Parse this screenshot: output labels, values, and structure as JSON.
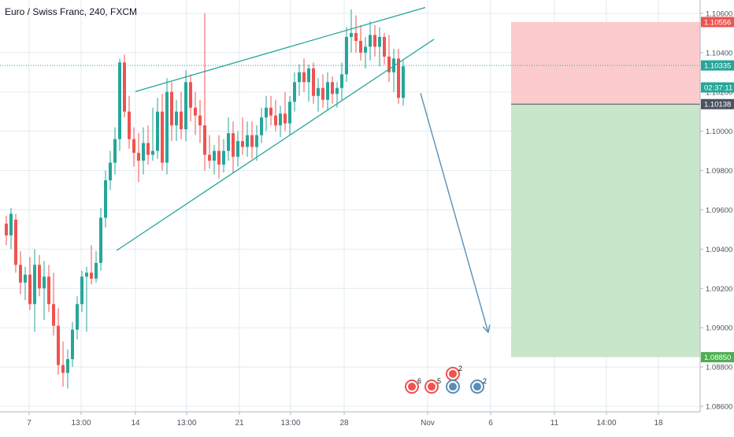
{
  "header": {
    "title": "Euro / Swiss Franc, 240, FXCM"
  },
  "colors": {
    "up": "#26a69a",
    "down": "#ef5350",
    "grid": "#e1ecf2",
    "axis_text": "#4c525e",
    "trend": "#26a69a",
    "arrow": "#5b8fb5",
    "stop_zone": "#fccbcd",
    "target_zone": "#c8e6c9",
    "price_line": "#26a69a"
  },
  "chart_data": {
    "type": "candlestick",
    "ylim": [
      1.0858,
      1.1066
    ],
    "y_ticks": [
      "1.10600",
      "1.10400",
      "1.10200",
      "1.10000",
      "1.09800",
      "1.09600",
      "1.09400",
      "1.09200",
      "1.09000",
      "1.08800",
      "1.08600"
    ],
    "x_ticks": [
      "7",
      "13:00",
      "14",
      "13:00",
      "21",
      "13:00",
      "28",
      "Nov",
      "6",
      "11",
      "14:00",
      "18"
    ],
    "x_range": [
      0,
      930
    ],
    "candles": [
      [
        8,
        1.0953,
        1.0957,
        1.0942,
        1.0947
      ],
      [
        14,
        1.0947,
        1.0961,
        1.094,
        1.0958
      ],
      [
        20,
        1.0955,
        1.0958,
        1.0928,
        1.0932
      ],
      [
        26,
        1.0932,
        1.0939,
        1.0917,
        1.0923
      ],
      [
        32,
        1.0923,
        1.0931,
        1.0914,
        1.0927
      ],
      [
        38,
        1.0927,
        1.0936,
        1.0909,
        1.0912
      ],
      [
        44,
        1.0912,
        1.094,
        1.0898,
        1.0932
      ],
      [
        50,
        1.0932,
        1.0937,
        1.0916,
        1.092
      ],
      [
        56,
        1.092,
        1.0934,
        1.0904,
        1.0926
      ],
      [
        62,
        1.0926,
        1.0932,
        1.0908,
        1.0912
      ],
      [
        68,
        1.0912,
        1.0928,
        1.0896,
        1.0901
      ],
      [
        74,
        1.0901,
        1.091,
        1.0876,
        1.0881
      ],
      [
        80,
        1.0881,
        1.0893,
        1.087,
        1.0877
      ],
      [
        86,
        1.0877,
        1.0889,
        1.0869,
        1.0884
      ],
      [
        92,
        1.0884,
        1.0903,
        1.088,
        1.0899
      ],
      [
        98,
        1.0899,
        1.0916,
        1.0894,
        1.0912
      ],
      [
        104,
        1.0912,
        1.0929,
        1.0908,
        1.0926
      ],
      [
        110,
        1.0926,
        1.0931,
        1.0898,
        1.0928
      ],
      [
        116,
        1.0928,
        1.0942,
        1.0922,
        1.0925
      ],
      [
        122,
        1.0925,
        1.0939,
        1.0923,
        1.0933
      ],
      [
        128,
        1.0933,
        1.0961,
        1.0929,
        1.0956
      ],
      [
        134,
        1.0956,
        1.098,
        1.0951,
        1.0975
      ],
      [
        140,
        1.0975,
        1.099,
        1.097,
        1.0984
      ],
      [
        146,
        1.0984,
        1.1002,
        1.0978,
        1.0996
      ],
      [
        152,
        1.0996,
        1.1037,
        1.099,
        1.1035
      ],
      [
        158,
        1.1035,
        1.1039,
        1.1007,
        1.101
      ],
      [
        164,
        1.101,
        1.1018,
        1.0991,
        1.0996
      ],
      [
        170,
        1.0996,
        1.1002,
        1.0982,
        1.0989
      ],
      [
        176,
        1.0989,
        1.0999,
        1.0974,
        1.0985
      ],
      [
        182,
        1.0985,
        1.1002,
        1.0978,
        1.0994
      ],
      [
        188,
        1.0994,
        1.1003,
        1.0983,
        1.0988
      ],
      [
        194,
        1.0988,
        1.1012,
        1.0985,
        1.099
      ],
      [
        200,
        1.099,
        1.1017,
        1.0986,
        1.101
      ],
      [
        206,
        1.101,
        1.1019,
        1.098,
        1.0984
      ],
      [
        212,
        1.0984,
        1.1027,
        1.0978,
        1.102
      ],
      [
        218,
        1.102,
        1.1025,
        1.0995,
        1.1003
      ],
      [
        224,
        1.1003,
        1.1016,
        1.0995,
        1.101
      ],
      [
        230,
        1.101,
        1.102,
        1.0996,
        1.1001
      ],
      [
        236,
        1.1001,
        1.1031,
        1.0995,
        1.1025
      ],
      [
        242,
        1.1025,
        1.1029,
        1.1005,
        1.1012
      ],
      [
        248,
        1.1012,
        1.102,
        1.0998,
        1.1008
      ],
      [
        254,
        1.1008,
        1.1016,
        1.0994,
        1.1003
      ],
      [
        260,
        1.1003,
        1.106,
        1.098,
        1.0988
      ],
      [
        266,
        1.0988,
        1.0998,
        1.0981,
        1.0985
      ],
      [
        272,
        1.0985,
        1.0993,
        1.0978,
        1.099
      ],
      [
        278,
        1.099,
        1.0998,
        1.0976,
        1.0983
      ],
      [
        284,
        1.0983,
        1.0996,
        1.0979,
        1.099
      ],
      [
        290,
        1.099,
        1.1007,
        1.0985,
        1.0999
      ],
      [
        296,
        1.0999,
        1.1005,
        1.0979,
        1.0987
      ],
      [
        302,
        1.0987,
        1.1,
        1.0982,
        1.0995
      ],
      [
        308,
        1.0995,
        1.1007,
        1.0988,
        1.0992
      ],
      [
        314,
        1.0992,
        1.1005,
        1.0987,
        1.0998
      ],
      [
        320,
        1.0998,
        1.1005,
        1.0986,
        1.0992
      ],
      [
        326,
        1.0992,
        1.1003,
        1.0985,
        1.0998
      ],
      [
        332,
        1.0998,
        1.1012,
        1.0994,
        1.1007
      ],
      [
        338,
        1.1007,
        1.1018,
        1.1,
        1.1012
      ],
      [
        344,
        1.1012,
        1.1018,
        1.1003,
        1.1008
      ],
      [
        350,
        1.1008,
        1.1016,
        1.1,
        1.1003
      ],
      [
        356,
        1.1003,
        1.1013,
        1.0997,
        1.1009
      ],
      [
        362,
        1.1009,
        1.102,
        1.1,
        1.1004
      ],
      [
        368,
        1.1004,
        1.1018,
        1.0998,
        1.1015
      ],
      [
        374,
        1.1015,
        1.103,
        1.101,
        1.1025
      ],
      [
        380,
        1.1025,
        1.1034,
        1.1018,
        1.103
      ],
      [
        386,
        1.103,
        1.1037,
        1.102,
        1.1025
      ],
      [
        392,
        1.1025,
        1.1034,
        1.1015,
        1.1032
      ],
      [
        398,
        1.1032,
        1.1035,
        1.1014,
        1.1018
      ],
      [
        404,
        1.1018,
        1.1027,
        1.101,
        1.1022
      ],
      [
        410,
        1.1022,
        1.1029,
        1.1012,
        1.1016
      ],
      [
        416,
        1.1016,
        1.103,
        1.1011,
        1.1025
      ],
      [
        422,
        1.1025,
        1.1028,
        1.1014,
        1.1019
      ],
      [
        428,
        1.1019,
        1.1025,
        1.1012,
        1.1022
      ],
      [
        434,
        1.1022,
        1.1035,
        1.1016,
        1.1029
      ],
      [
        440,
        1.1029,
        1.1053,
        1.1025,
        1.1048
      ],
      [
        446,
        1.1048,
        1.1062,
        1.104,
        1.105
      ],
      [
        452,
        1.105,
        1.1059,
        1.104,
        1.1046
      ],
      [
        458,
        1.1046,
        1.1054,
        1.1036,
        1.104
      ],
      [
        464,
        1.104,
        1.1048,
        1.1032,
        1.1043
      ],
      [
        470,
        1.1043,
        1.1056,
        1.1036,
        1.1049
      ],
      [
        476,
        1.1049,
        1.1054,
        1.1038,
        1.1043
      ],
      [
        482,
        1.1043,
        1.1053,
        1.1033,
        1.1048
      ],
      [
        488,
        1.1048,
        1.105,
        1.1034,
        1.1038
      ],
      [
        494,
        1.1038,
        1.1049,
        1.1025,
        1.103
      ],
      [
        500,
        1.103,
        1.1042,
        1.102,
        1.1037
      ],
      [
        506,
        1.1037,
        1.1042,
        1.1014,
        1.1017
      ],
      [
        512,
        1.1017,
        1.1036,
        1.1013,
        1.1033
      ]
    ],
    "trendlines": [
      {
        "name": "upper-trendline",
        "from": [
          172,
          1.10202
        ],
        "to": [
          540,
          1.1063
        ]
      },
      {
        "name": "lower-trendline",
        "from": [
          148,
          1.09393
        ],
        "to": [
          551,
          1.10468
        ]
      }
    ],
    "forecast_arrow": {
      "from": [
        534,
        1.10194
      ],
      "to": [
        620,
        1.08975
      ]
    },
    "price_line": {
      "value": 1.10335
    },
    "position": {
      "x_from": 649,
      "x_to": 889,
      "stop": 1.10556,
      "entry": 1.10138,
      "target": 1.0885
    },
    "axis_labels": [
      {
        "text": "1.10556",
        "value": 1.10556,
        "bg": "#ef5350",
        "fg": "#ffffff"
      },
      {
        "text": "1.10335",
        "value": 1.10335,
        "bg": "#26a69a",
        "fg": "#ffffff"
      },
      {
        "text": "02:37:11",
        "value": 1.10223,
        "bg": "#26a69a",
        "fg": "#ffffff"
      },
      {
        "text": "1.10138",
        "value": 1.10138,
        "bg": "#4c525e",
        "fg": "#ffffff"
      },
      {
        "text": "1.08850",
        "value": 1.0885,
        "bg": "#4caf50",
        "fg": "#ffffff"
      }
    ],
    "events": [
      {
        "x": 523,
        "y": 1.087,
        "icon": "flag-icon",
        "count": "6",
        "color": "#ef5350"
      },
      {
        "x": 548,
        "y": 1.087,
        "icon": "flag-icon",
        "count": "5",
        "color": "#ef5350"
      },
      {
        "x": 575,
        "y": 1.08765,
        "icon": "flag-icon",
        "count": "2",
        "color": "#ef5350"
      },
      {
        "x": 575,
        "y": 1.087,
        "icon": "globe-icon",
        "count": "",
        "color": "#5b8fb5"
      },
      {
        "x": 606,
        "y": 1.087,
        "icon": "globe-icon",
        "count": "2",
        "color": "#5b8fb5"
      }
    ]
  }
}
